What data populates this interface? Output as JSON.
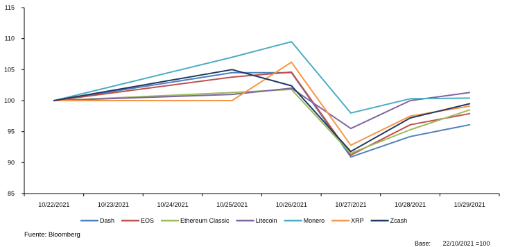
{
  "chart_data": {
    "type": "line",
    "title": "",
    "xlabel": "",
    "ylabel": "",
    "categories": [
      "10/22/2021",
      "10/23/2021",
      "10/24/2021",
      "10/25/2021",
      "10/26/2021",
      "10/27/2021",
      "10/28/2021",
      "10/29/2021"
    ],
    "ylim": [
      85,
      115
    ],
    "yticks": [
      85,
      90,
      95,
      100,
      105,
      110,
      115
    ],
    "grid": false,
    "legend_position": "bottom",
    "series": [
      {
        "name": "Dash",
        "color": "#4f81bd",
        "values": [
          100,
          null,
          null,
          104.5,
          104.5,
          90.9,
          94.2,
          96.1
        ]
      },
      {
        "name": "EOS",
        "color": "#c0504d",
        "values": [
          100,
          null,
          null,
          103.8,
          104.6,
          91.2,
          96.1,
          97.9
        ]
      },
      {
        "name": "Ethereum Classic",
        "color": "#9bbb59",
        "values": [
          100,
          null,
          null,
          101.3,
          101.8,
          91.5,
          95.3,
          98.5
        ]
      },
      {
        "name": "Litecoin",
        "color": "#8064a2",
        "values": [
          100,
          null,
          null,
          101.0,
          102.0,
          95.5,
          100.0,
          101.3
        ]
      },
      {
        "name": "Monero",
        "color": "#4bacc6",
        "values": [
          100,
          null,
          null,
          107.0,
          109.5,
          98.0,
          100.3,
          100.4
        ]
      },
      {
        "name": "XRP",
        "color": "#f79646",
        "values": [
          100,
          null,
          null,
          100.0,
          106.2,
          92.8,
          97.5,
          99.1
        ]
      },
      {
        "name": "Zcash",
        "color": "#1f3864",
        "values": [
          100,
          null,
          null,
          105.0,
          102.4,
          91.8,
          97.2,
          99.5
        ]
      }
    ]
  },
  "source": "Fuente: Bloomberg",
  "base": "Base:       22/10/2021 =100"
}
